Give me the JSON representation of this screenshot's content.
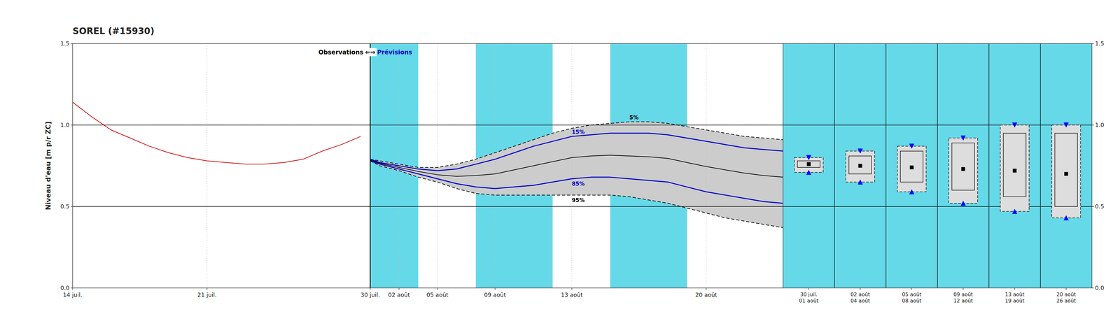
{
  "chart_data": [
    {
      "type": "line",
      "title": "SOREL (#15930)",
      "y_label": "Niveau d'eau [m p/r ZC]",
      "xlim": [
        0,
        37
      ],
      "xticks": [
        {
          "value": 0,
          "label": "14 juil."
        },
        {
          "value": 7,
          "label": "21 juil."
        },
        {
          "value": 15.5,
          "label": "30 juil."
        },
        {
          "value": 17,
          "label": "02 août"
        },
        {
          "value": 19,
          "label": "05 août"
        },
        {
          "value": 22,
          "label": "09 août"
        },
        {
          "value": 26,
          "label": "13 août"
        },
        {
          "value": 33,
          "label": "20 août"
        }
      ],
      "ylim": [
        0,
        1.5
      ],
      "yticks": [
        {
          "value": 0,
          "label": "0.0"
        },
        0.5,
        {
          "value": 1,
          "label": "1.0"
        },
        1.5
      ],
      "grid": true,
      "bands": {
        "color": "#66d9e8",
        "ranges": [
          [
            15.5,
            18
          ],
          [
            21,
            25
          ],
          [
            28,
            32
          ]
        ]
      },
      "fill": {
        "between": [
          "5%",
          "95%"
        ],
        "color": "#cccccc"
      },
      "reference_lines": [
        0.5,
        1.0
      ],
      "vlines": [
        15.5
      ],
      "annotations": [
        {
          "text": "Observations",
          "color": "black"
        },
        {
          "text": "⇐⇒",
          "color": "black"
        },
        {
          "text": "Prévisions",
          "color": "#0000cc"
        }
      ],
      "series": [
        {
          "name": "5%",
          "color": "black",
          "line_style": "dashed",
          "x": [
            15.5,
            16,
            17,
            18,
            19,
            20,
            21,
            22,
            23,
            24,
            25,
            26,
            27,
            28,
            29,
            30,
            31,
            32,
            33,
            34,
            35,
            36,
            37
          ],
          "values": [
            0.79,
            0.78,
            0.76,
            0.74,
            0.74,
            0.76,
            0.79,
            0.83,
            0.87,
            0.91,
            0.95,
            0.98,
            1.0,
            1.01,
            1.02,
            1.02,
            1.01,
            0.99,
            0.97,
            0.95,
            0.93,
            0.92,
            0.91
          ]
        },
        {
          "name": "15%",
          "color": "#0000cc",
          "line_style": "solid",
          "x": [
            15.5,
            16,
            17,
            18,
            19,
            20,
            21,
            22,
            23,
            24,
            25,
            26,
            27,
            28,
            29,
            30,
            31,
            32,
            33,
            34,
            35,
            36,
            37
          ],
          "values": [
            0.79,
            0.77,
            0.75,
            0.73,
            0.72,
            0.73,
            0.76,
            0.79,
            0.83,
            0.87,
            0.9,
            0.93,
            0.94,
            0.95,
            0.95,
            0.95,
            0.94,
            0.92,
            0.9,
            0.88,
            0.86,
            0.85,
            0.84
          ]
        },
        {
          "name": "85%",
          "color": "#0000cc",
          "line_style": "solid",
          "x": [
            15.5,
            16,
            17,
            18,
            19,
            20,
            21,
            22,
            23,
            24,
            25,
            26,
            27,
            28,
            29,
            30,
            31,
            32,
            33,
            34,
            35,
            36,
            37
          ],
          "values": [
            0.78,
            0.76,
            0.73,
            0.7,
            0.67,
            0.64,
            0.62,
            0.61,
            0.62,
            0.63,
            0.65,
            0.67,
            0.68,
            0.68,
            0.67,
            0.66,
            0.65,
            0.62,
            0.59,
            0.57,
            0.55,
            0.53,
            0.52
          ]
        },
        {
          "name": "95%",
          "color": "black",
          "line_style": "dashed",
          "x": [
            15.5,
            16,
            17,
            18,
            19,
            20,
            21,
            22,
            23,
            24,
            25,
            26,
            27,
            28,
            29,
            30,
            31,
            32,
            33,
            34,
            35,
            36,
            37
          ],
          "values": [
            0.78,
            0.75,
            0.72,
            0.68,
            0.65,
            0.61,
            0.58,
            0.57,
            0.57,
            0.57,
            0.57,
            0.57,
            0.57,
            0.57,
            0.56,
            0.54,
            0.52,
            0.49,
            0.46,
            0.43,
            0.41,
            0.39,
            0.37
          ]
        },
        {
          "color": "black",
          "line_style": "solid",
          "x": [
            15.5,
            16,
            17,
            18,
            19,
            20,
            21,
            22,
            23,
            24,
            25,
            26,
            27,
            28,
            29,
            30,
            31,
            32,
            33,
            34,
            35,
            36,
            37
          ],
          "values": [
            0.785,
            0.765,
            0.74,
            0.715,
            0.695,
            0.685,
            0.69,
            0.7,
            0.725,
            0.75,
            0.775,
            0.8,
            0.81,
            0.815,
            0.81,
            0.805,
            0.795,
            0.77,
            0.745,
            0.725,
            0.705,
            0.69,
            0.68
          ]
        },
        {
          "color": "#cc0000",
          "line_style": "solid",
          "x": [
            0,
            1,
            2,
            3,
            4,
            5,
            6,
            7,
            8,
            9,
            10,
            11,
            12,
            13,
            14,
            15
          ],
          "values": [
            1.14,
            1.05,
            0.97,
            0.92,
            0.87,
            0.83,
            0.8,
            0.78,
            0.77,
            0.76,
            0.76,
            0.77,
            0.79,
            0.84,
            0.88,
            0.93
          ]
        }
      ]
    },
    {
      "type": "box",
      "categories": [
        "30 juil.",
        "02 août",
        "05 août",
        "09 août",
        "13 août",
        "20 août"
      ],
      "category_ends": [
        "01 août",
        "04 août",
        "08 août",
        "12 août",
        "19 août",
        "26 août"
      ],
      "ylim": [
        0,
        1.5
      ],
      "yticks": [
        {
          "value": 0,
          "label": "0.0"
        },
        0.5,
        {
          "value": 1,
          "label": "1.0"
        },
        1.5
      ],
      "grid": true,
      "reference_lines": [
        0.5,
        1.0
      ],
      "background_color": "#66d9e8",
      "color": "#dddddd",
      "marker_color": "blue",
      "median_color": "black",
      "p5": [
        0.8,
        0.84,
        0.87,
        0.92,
        1.0,
        1.0
      ],
      "p15": [
        0.78,
        0.81,
        0.84,
        0.89,
        0.95,
        0.95
      ],
      "median": [
        0.76,
        0.75,
        0.74,
        0.73,
        0.72,
        0.7
      ],
      "p85": [
        0.74,
        0.7,
        0.65,
        0.6,
        0.56,
        0.5
      ],
      "p95": [
        0.71,
        0.65,
        0.59,
        0.52,
        0.47,
        0.43
      ]
    }
  ]
}
